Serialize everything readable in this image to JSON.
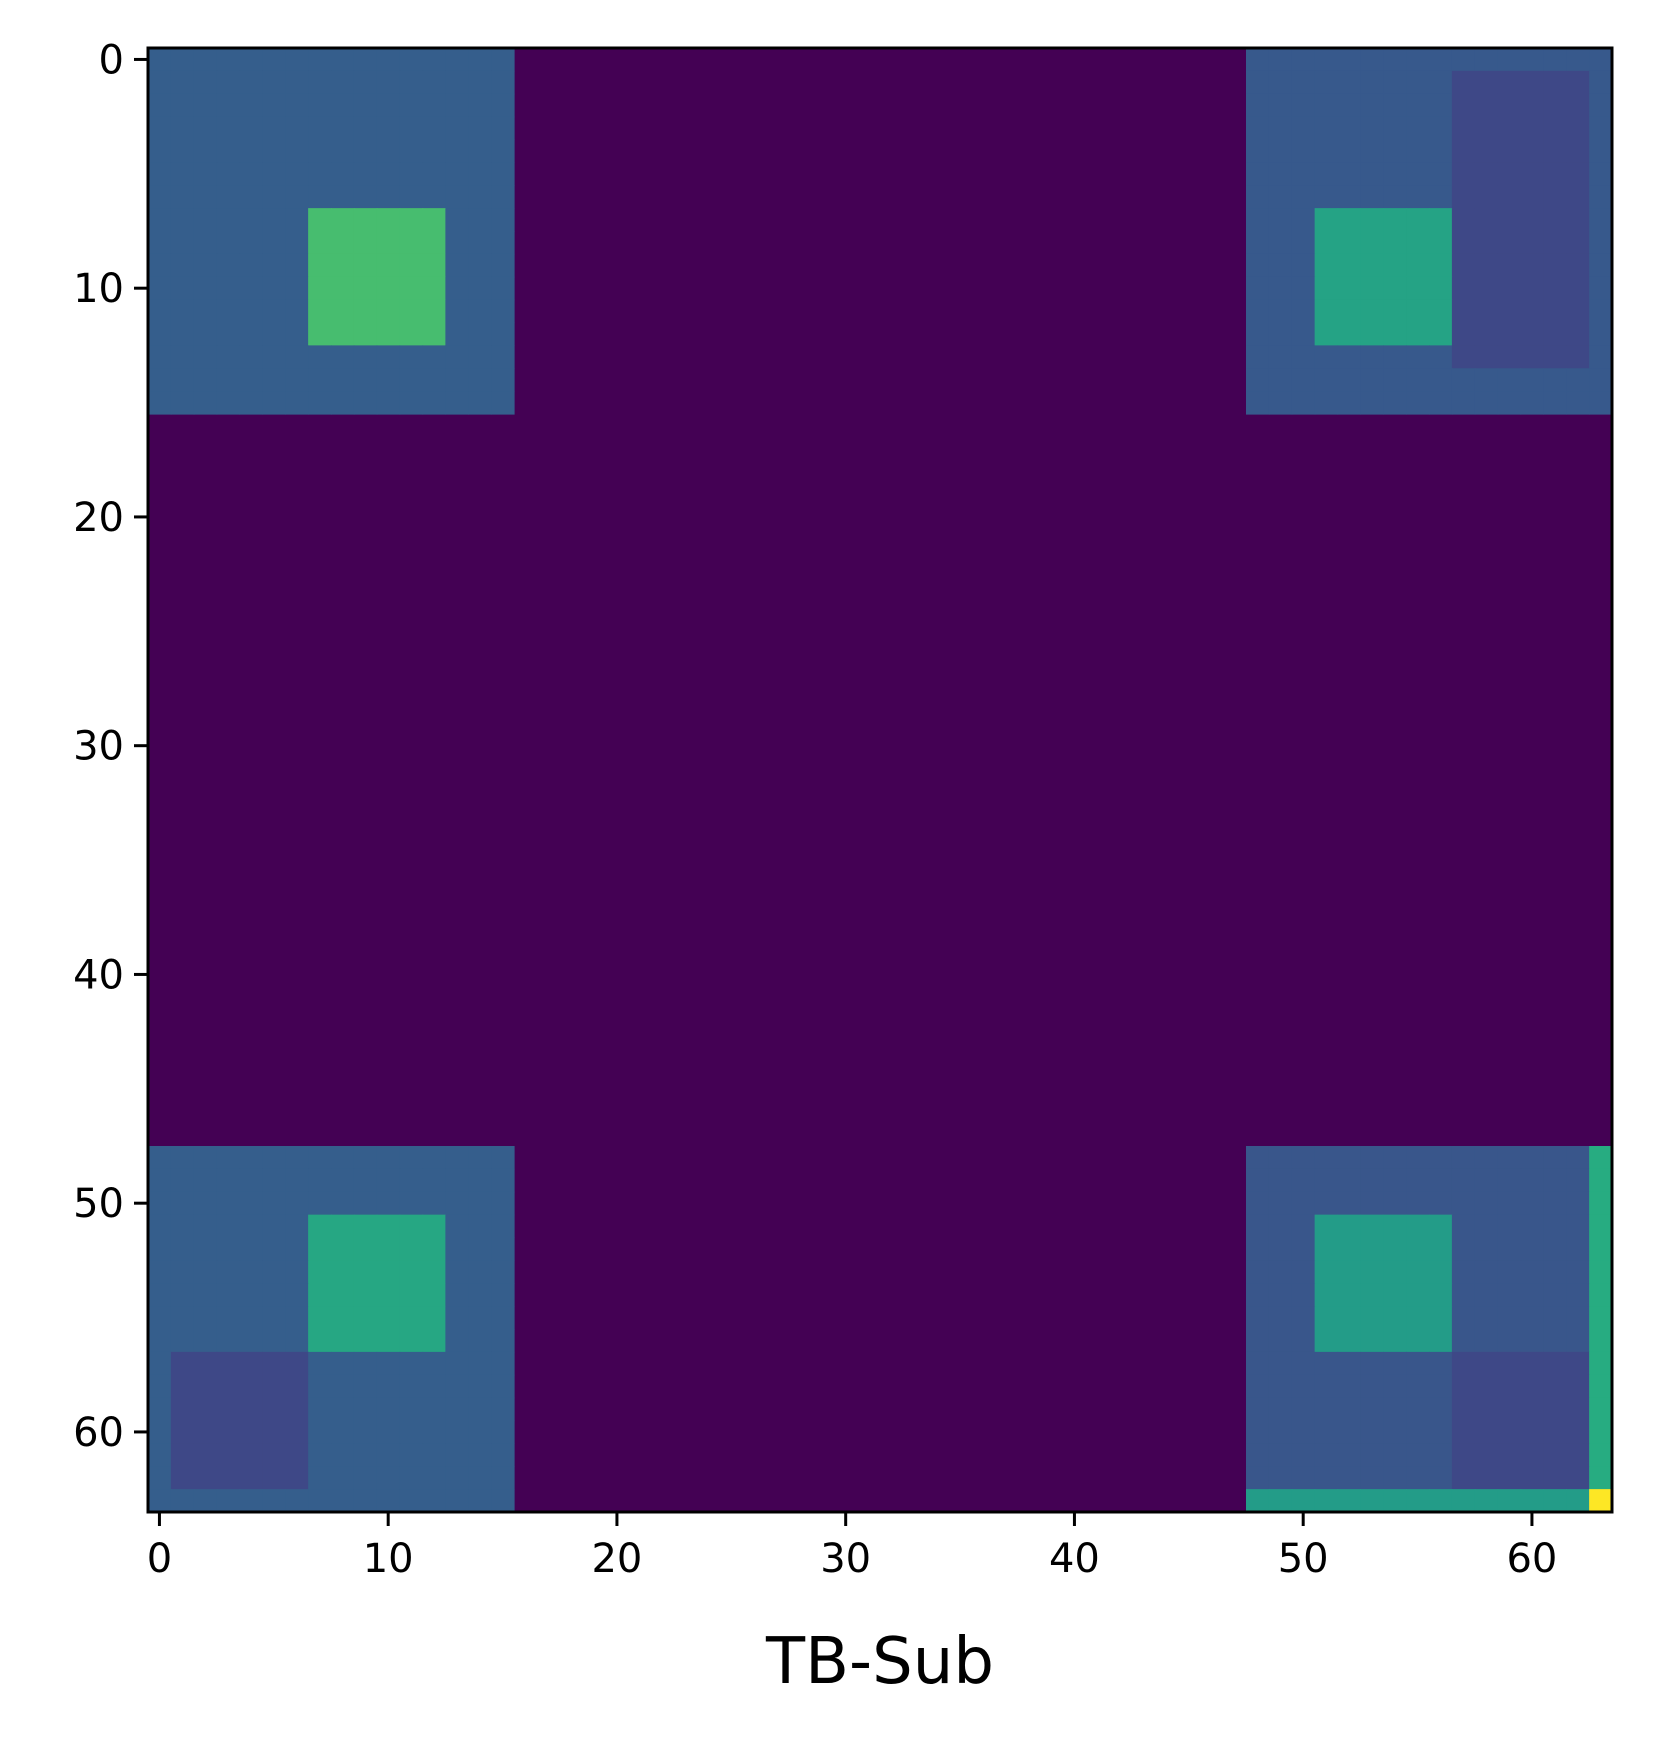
{
  "chart_data": {
    "type": "heatmap",
    "title": "",
    "xlabel": "TB-Sub",
    "ylabel": "",
    "rows": 64,
    "cols": 64,
    "xlim": [
      -0.5,
      63.5
    ],
    "ylim": [
      63.5,
      -0.5
    ],
    "xticks": [
      0,
      10,
      20,
      30,
      40,
      50,
      60
    ],
    "yticks": [
      0,
      10,
      20,
      30,
      40,
      50,
      60
    ],
    "colormap": "viridis",
    "background_value": 0.0,
    "blocks": [
      {
        "name": "top-left outer",
        "rows": [
          0,
          15
        ],
        "cols": [
          0,
          15
        ],
        "value": 0.3
      },
      {
        "name": "top-left inner",
        "rows": [
          7,
          12
        ],
        "cols": [
          7,
          12
        ],
        "value": 0.7
      },
      {
        "name": "top-right outer",
        "rows": [
          0,
          15
        ],
        "cols": [
          48,
          63
        ],
        "value": 0.28
      },
      {
        "name": "top-right inner",
        "rows": [
          7,
          12
        ],
        "cols": [
          51,
          56
        ],
        "value": 0.58
      },
      {
        "name": "top-right corner fade",
        "rows": [
          1,
          13
        ],
        "cols": [
          57,
          62
        ],
        "value": 0.22
      },
      {
        "name": "bottom-left outer",
        "rows": [
          48,
          63
        ],
        "cols": [
          0,
          15
        ],
        "value": 0.3
      },
      {
        "name": "bottom-left inner",
        "rows": [
          51,
          56
        ],
        "cols": [
          7,
          12
        ],
        "value": 0.6
      },
      {
        "name": "bottom-left fade",
        "rows": [
          57,
          62
        ],
        "cols": [
          1,
          6
        ],
        "value": 0.22
      },
      {
        "name": "bottom-right outer",
        "rows": [
          48,
          62
        ],
        "cols": [
          48,
          62
        ],
        "value": 0.27
      },
      {
        "name": "bottom-right inner",
        "rows": [
          51,
          56
        ],
        "cols": [
          51,
          56
        ],
        "value": 0.55
      },
      {
        "name": "bottom-right fade",
        "rows": [
          57,
          62
        ],
        "cols": [
          57,
          62
        ],
        "value": 0.22
      },
      {
        "name": "last column band",
        "rows": [
          48,
          62
        ],
        "cols": [
          63,
          63
        ],
        "value": 0.62
      },
      {
        "name": "last row band",
        "rows": [
          63,
          63
        ],
        "cols": [
          48,
          62
        ],
        "value": 0.55
      },
      {
        "name": "max cell",
        "rows": [
          63,
          63
        ],
        "cols": [
          63,
          63
        ],
        "value": 1.0
      }
    ]
  }
}
